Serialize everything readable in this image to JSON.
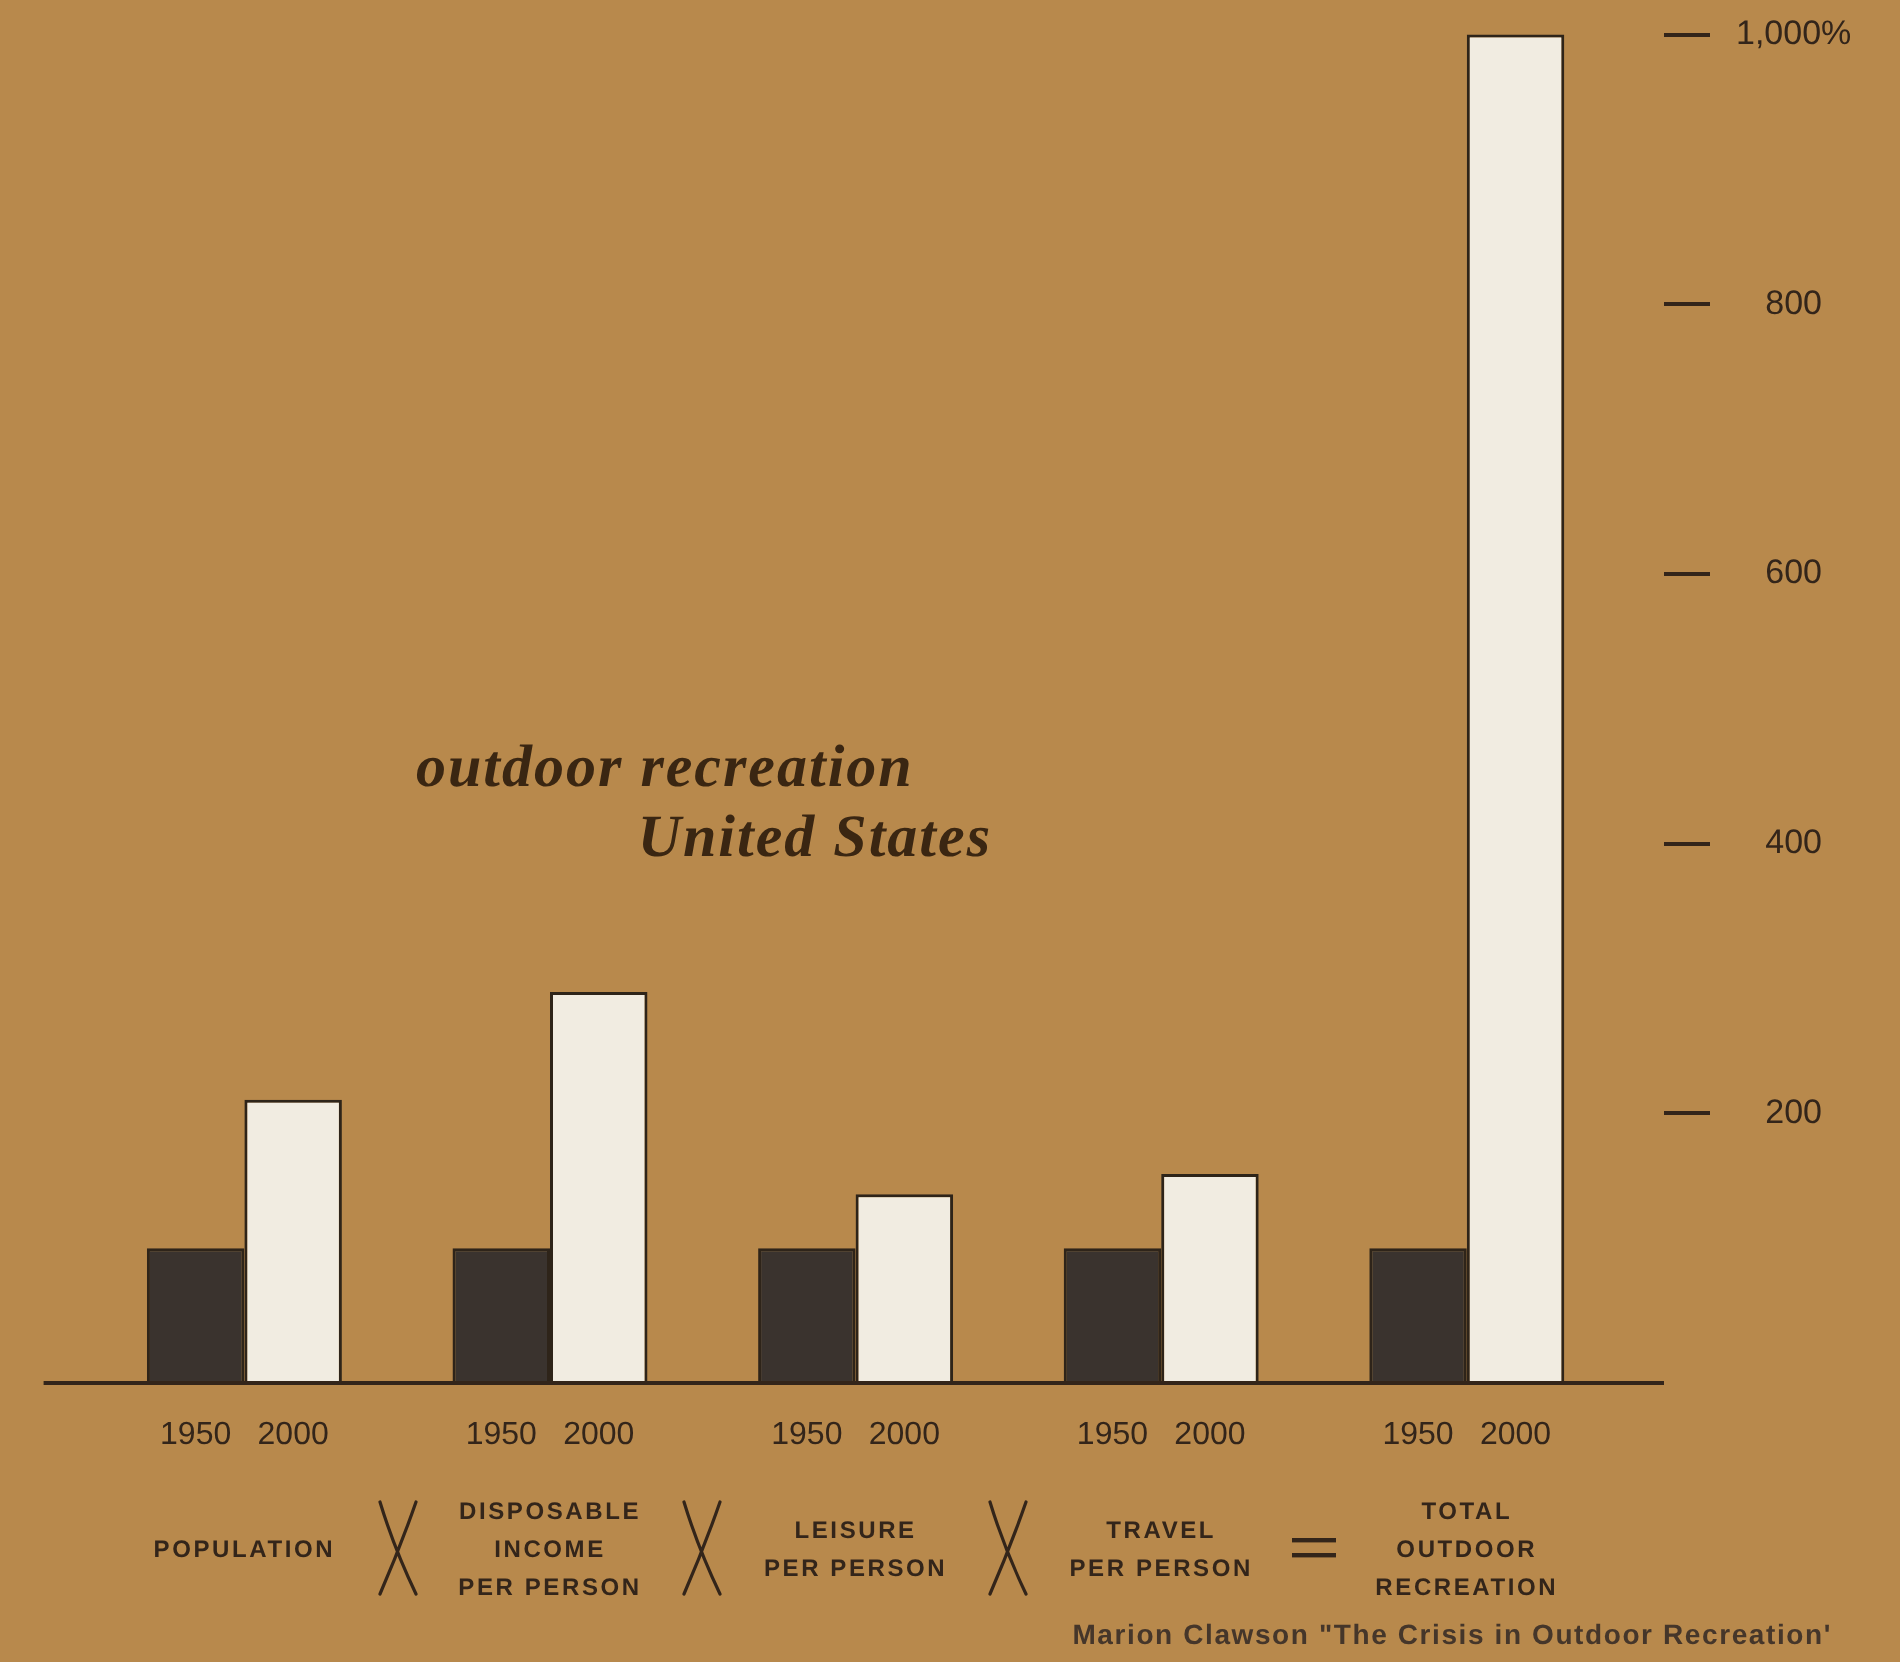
{
  "chart_data": {
    "type": "bar",
    "title": "outdoor recreation",
    "subtitle": "United States",
    "categories": [
      "POPULATION",
      "DISPOSABLE INCOME PER PERSON",
      "LEISURE PER PERSON",
      "TRAVEL PER PERSON",
      "TOTAL OUTDOOR RECREATION"
    ],
    "series": [
      {
        "name": "1950",
        "color": "#3a332e",
        "values": [
          100,
          100,
          100,
          100,
          100
        ]
      },
      {
        "name": "2000",
        "color": "#f1ece1",
        "values": [
          210,
          290,
          140,
          155,
          1000
        ]
      }
    ],
    "ylim": [
      0,
      1000
    ],
    "yticks": [
      200,
      400,
      600,
      800,
      {
        "value": 1000,
        "label": "1,000%"
      }
    ],
    "grid": false,
    "legend": false,
    "annotations": [
      "Marion Clawson \"The Crisis in Outdoor Recreation'"
    ]
  }
}
